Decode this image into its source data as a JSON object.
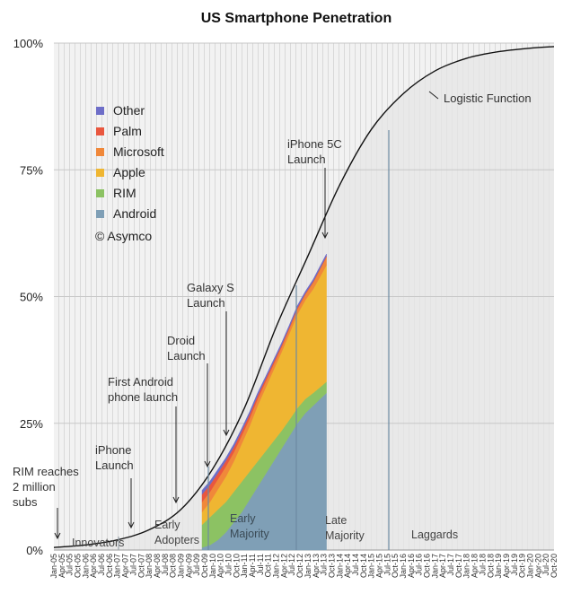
{
  "chart_data": {
    "type": "area",
    "title": "US Smartphone Penetration",
    "y_ticks": [
      "0%",
      "25%",
      "50%",
      "75%",
      "100%"
    ],
    "ylim": [
      0,
      100
    ],
    "x_tick_labels": [
      "Jan-05",
      "Apr-05",
      "Jul-05",
      "Oct-05",
      "Jan-06",
      "Apr-06",
      "Jul-06",
      "Oct-06",
      "Jan-07",
      "Apr-07",
      "Jul-07",
      "Oct-07",
      "Jan-08",
      "Apr-08",
      "Jul-08",
      "Oct-08",
      "Jan-09",
      "Apr-09",
      "Jul-09",
      "Oct-09",
      "Jan-10",
      "Apr-10",
      "Jul-10",
      "Oct-10",
      "Jan-11",
      "Apr-11",
      "Jul-11",
      "Oct-11",
      "Jan-12",
      "Apr-12",
      "Jul-12",
      "Oct-12",
      "Jan-13",
      "Apr-13",
      "Jul-13",
      "Oct-13",
      "Jan-14",
      "Apr-14",
      "Jul-14",
      "Oct-14",
      "Jan-15",
      "Apr-15",
      "Jul-15",
      "Oct-15",
      "Jan-16",
      "Apr-16",
      "Jul-16",
      "Oct-16",
      "Jan-17",
      "Apr-17",
      "Jul-17",
      "Oct-17",
      "Jan-18",
      "Apr-18",
      "Jul-18",
      "Oct-18",
      "Jan-19",
      "Apr-19",
      "Jul-19",
      "Oct-19",
      "Jan-20",
      "Apr-20",
      "Jul-20",
      "Oct-20"
    ],
    "legend": [
      {
        "name": "Other",
        "color": "#6e6ec8"
      },
      {
        "name": "Palm",
        "color": "#e9573f"
      },
      {
        "name": "Microsoft",
        "color": "#f0883a"
      },
      {
        "name": "Apple",
        "color": "#efb632"
      },
      {
        "name": "RIM",
        "color": "#8cc263"
      },
      {
        "name": "Android",
        "color": "#7f9fb6"
      }
    ],
    "copyright": "© Asymco",
    "stack_x": [
      "Sep-09",
      "Dec-09",
      "Mar-10",
      "Jun-10",
      "Sep-10",
      "Dec-10",
      "Mar-11",
      "Jun-11",
      "Sep-11",
      "Dec-11",
      "Mar-12",
      "Jun-12",
      "Sep-12",
      "Dec-12",
      "Mar-13",
      "Jun-13",
      "Aug-13"
    ],
    "series": [
      {
        "name": "Android",
        "values": [
          0.5,
          1,
          2,
          3.5,
          5.5,
          7.5,
          10,
          12.5,
          15,
          17.5,
          20,
          22.5,
          25,
          27,
          28.5,
          30,
          31
        ]
      },
      {
        "name": "RIM",
        "values": [
          4.5,
          5.5,
          6,
          6,
          6,
          6,
          5.5,
          5,
          4.5,
          4,
          3.5,
          3.2,
          3,
          2.8,
          2.5,
          2.3,
          2.2
        ]
      },
      {
        "name": "Apple",
        "values": [
          2.5,
          3,
          4,
          5,
          6,
          7.5,
          9,
          11,
          12.5,
          14,
          15.5,
          17,
          18.5,
          19.5,
          20.5,
          22,
          23
        ]
      },
      {
        "name": "Microsoft",
        "values": [
          2,
          2,
          2,
          2,
          1.8,
          1.6,
          1.5,
          1.3,
          1.2,
          1.1,
          1,
          1,
          1,
          1.1,
          1.3,
          1.5,
          1.6
        ]
      },
      {
        "name": "Palm",
        "values": [
          1.5,
          1.4,
          1.2,
          1.1,
          1,
          0.9,
          0.8,
          0.7,
          0.6,
          0.5,
          0.4,
          0.3,
          0.3,
          0.2,
          0.2,
          0.2,
          0.2
        ]
      },
      {
        "name": "Other",
        "values": [
          0.8,
          0.7,
          0.7,
          0.6,
          0.6,
          0.5,
          0.5,
          0.5,
          0.4,
          0.4,
          0.4,
          0.4,
          0.4,
          0.4,
          0.4,
          0.4,
          0.4
        ]
      }
    ],
    "logistic_function": {
      "label": "Logistic Function",
      "samples": [
        [
          "Jan-05",
          0.5
        ],
        [
          "Jan-06",
          1
        ],
        [
          "Jan-07",
          2
        ],
        [
          "Jan-08",
          4
        ],
        [
          "Jan-09",
          8
        ],
        [
          "Jan-10",
          16
        ],
        [
          "Jan-11",
          28
        ],
        [
          "Jan-12",
          44
        ],
        [
          "Jan-13",
          58
        ],
        [
          "Jan-14",
          72
        ],
        [
          "Jan-15",
          83
        ],
        [
          "Jan-16",
          90
        ],
        [
          "Jan-17",
          94.5
        ],
        [
          "Jan-18",
          97
        ],
        [
          "Jan-19",
          98.3
        ],
        [
          "Jan-20",
          99
        ],
        [
          "Oct-20",
          99.3
        ]
      ]
    },
    "milestones": [
      {
        "lines": [
          "RIM reaches",
          "2 million",
          "subs"
        ],
        "date": "Jan-05"
      },
      {
        "lines": [
          "iPhone",
          "Launch"
        ],
        "date": "Jun-07"
      },
      {
        "lines": [
          "First Android",
          "phone launch"
        ],
        "date": "Oct-08"
      },
      {
        "lines": [
          "Droid",
          "Launch"
        ],
        "date": "Nov-09"
      },
      {
        "lines": [
          "Galaxy S",
          "Launch"
        ],
        "date": "Jun-10"
      },
      {
        "lines": [
          "iPhone 5C",
          "Launch"
        ],
        "date": "Sep-13"
      }
    ],
    "segments": [
      {
        "lines": [
          "Innovators"
        ]
      },
      {
        "lines": [
          "Early",
          "Adopters"
        ]
      },
      {
        "lines": [
          "Early",
          "Majority"
        ]
      },
      {
        "lines": [
          "Late",
          "Majority"
        ]
      },
      {
        "lines": [
          "Laggards"
        ]
      }
    ]
  }
}
